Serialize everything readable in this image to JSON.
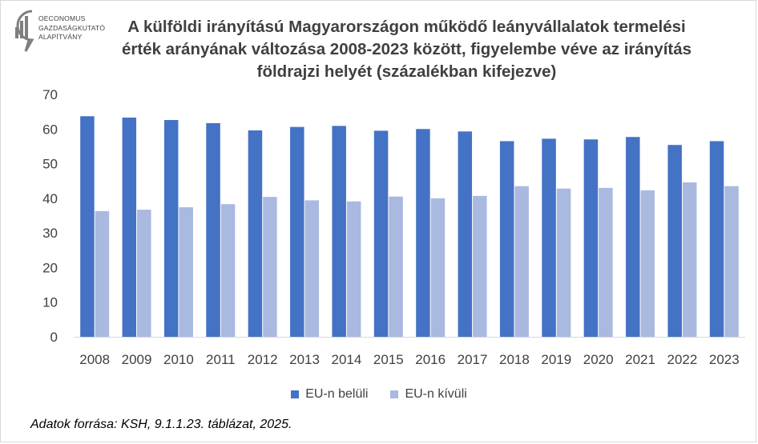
{
  "logo": {
    "icon": "economics-bar-chart-logo-icon",
    "lines": [
      "OECONOMUS",
      "GAZDASÁGKUTATÓ",
      "ALAPÍTVÁNY"
    ]
  },
  "title_lines": [
    "A külföldi irányítású Magyarországon működő leányvállalatok termelési",
    "érték arányának változása 2008-2023 között, figyelembe véve az irányítás",
    "földrajzi helyét (százalékban kifejezve)"
  ],
  "source": "Adatok forrása: KSH, 9.1.1.23. táblázat, 2025.",
  "chart_data": {
    "type": "bar",
    "title": "A külföldi irányítású Magyarországon működő leányvállalatok termelési érték arányának változása 2008-2023 között, figyelembe véve az irányítás földrajzi helyét (százalékban kifejezve)",
    "xlabel": "",
    "ylabel": "",
    "ylim": [
      0,
      70
    ],
    "yticks": [
      0,
      10,
      20,
      30,
      40,
      50,
      60,
      70
    ],
    "grid": false,
    "legend_position": "bottom",
    "categories": [
      "2008",
      "2009",
      "2010",
      "2011",
      "2012",
      "2013",
      "2014",
      "2015",
      "2016",
      "2017",
      "2018",
      "2019",
      "2020",
      "2021",
      "2022",
      "2023"
    ],
    "series": [
      {
        "name": "EU-n belüli",
        "color": "#4472c4",
        "values": [
          63.7,
          63.3,
          62.6,
          61.7,
          59.6,
          60.6,
          60.9,
          59.5,
          60.0,
          59.3,
          56.5,
          57.2,
          57.0,
          57.7,
          55.4,
          56.5
        ]
      },
      {
        "name": "EU-n kívüli",
        "color": "#a9b9e0",
        "values": [
          36.3,
          36.7,
          37.4,
          38.3,
          40.4,
          39.4,
          39.1,
          40.5,
          40.0,
          40.7,
          43.5,
          42.8,
          43.0,
          42.3,
          44.6,
          43.5
        ]
      }
    ]
  }
}
